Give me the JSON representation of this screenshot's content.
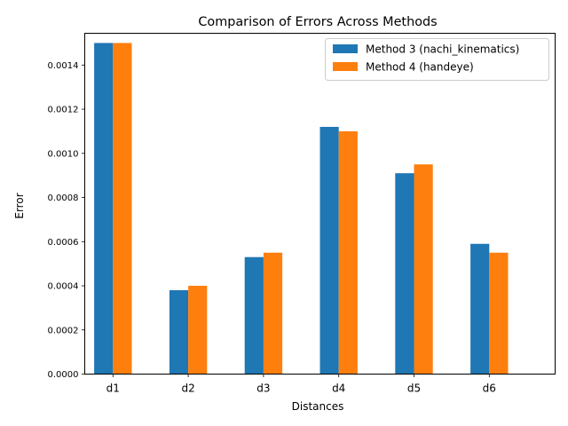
{
  "chart_data": {
    "type": "bar",
    "title": "Comparison of Errors Across Methods",
    "xlabel": "Distances",
    "ylabel": "Error",
    "categories": [
      "d1",
      "d2",
      "d3",
      "d4",
      "d5",
      "d6"
    ],
    "series": [
      {
        "name": "Method 3 (nachi_kinematics)",
        "color": "#1f77b4",
        "values": [
          0.0015,
          0.00038,
          0.00053,
          0.00112,
          0.00091,
          0.00059
        ]
      },
      {
        "name": "Method 4 (handeye)",
        "color": "#ff7f0e",
        "values": [
          0.0015,
          0.0004,
          0.00055,
          0.0011,
          0.00095,
          0.00055
        ]
      }
    ],
    "ylim": [
      0,
      0.001544
    ],
    "yticks": [
      "0.0000",
      "0.0002",
      "0.0004",
      "0.0006",
      "0.0008",
      "0.0010",
      "0.0012",
      "0.0014"
    ],
    "ytick_values": [
      0,
      0.0002,
      0.0004,
      0.0006,
      0.0008,
      0.001,
      0.0012,
      0.0014
    ],
    "grid": false,
    "legend_position": "top-right"
  }
}
